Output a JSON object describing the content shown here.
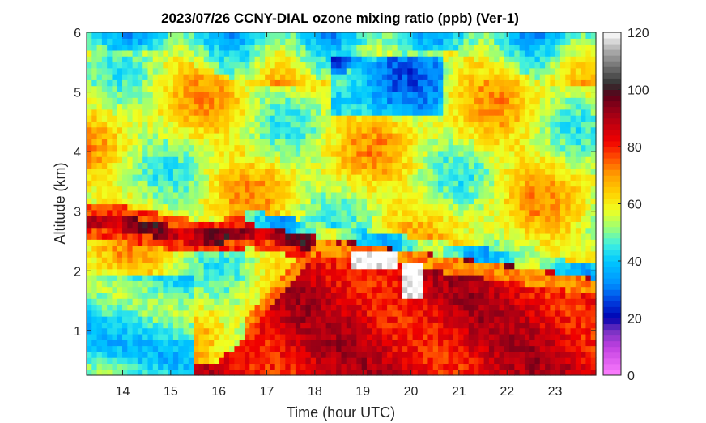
{
  "chart_data": {
    "type": "heatmap",
    "title": "2023/07/26 CCNY-DIAL ozone mixing ratio (ppb) (Ver-1)",
    "xlabel": "Time (hour UTC)",
    "ylabel": "Altitude (km)",
    "xlim": [
      13.25,
      23.85
    ],
    "ylim": [
      0.25,
      6.0
    ],
    "xticks": [
      "14",
      "15",
      "16",
      "17",
      "18",
      "19",
      "20",
      "21",
      "22",
      "23"
    ],
    "yticks": [
      "1",
      "2",
      "3",
      "4",
      "5",
      "6"
    ],
    "colorbar": {
      "range": [
        0,
        120
      ],
      "ticks": [
        "0",
        "20",
        "40",
        "60",
        "80",
        "100",
        "120"
      ]
    },
    "features": {
      "free_troposphere_ppb": 58,
      "upper_layer_min_ppb": 28,
      "residual_layer_ppb": 92,
      "boundary_layer_afternoon_ppb": 85,
      "morning_surface_ppb": 45,
      "max_ppb": 120
    }
  }
}
